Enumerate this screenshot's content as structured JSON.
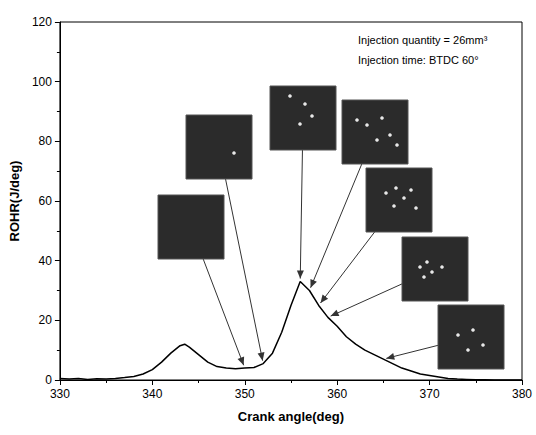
{
  "chart_data": {
    "type": "line",
    "xlabel": "Crank angle(deg)",
    "ylabel": "ROHR(J/deg)",
    "annotations": [
      "Injection quantity = 26mm³",
      "Injection time: BTDC 60°"
    ],
    "x": [
      330,
      331,
      332,
      333,
      334,
      335,
      336,
      337,
      338,
      339,
      340,
      341,
      342,
      343,
      343.5,
      344,
      345,
      346,
      347,
      348,
      349,
      350,
      351,
      352,
      353,
      354,
      355,
      356,
      357,
      358,
      359,
      360,
      361,
      362,
      363,
      364,
      365,
      366,
      367,
      368,
      369,
      370,
      371,
      372,
      373,
      374,
      375,
      376,
      377,
      378,
      379,
      380
    ],
    "values": [
      0.5,
      0.3,
      0.5,
      0.2,
      0.4,
      0.3,
      0.5,
      0.8,
      1.2,
      2,
      3.5,
      6,
      9,
      11.5,
      12,
      11,
      8.5,
      6,
      4.5,
      4,
      3.8,
      4,
      4.2,
      5.5,
      9,
      16,
      25,
      33,
      30,
      25,
      21,
      18,
      14.5,
      12,
      10,
      8.5,
      7,
      5.5,
      4,
      3,
      2,
      1.5,
      1,
      0.5,
      0.3,
      0.2,
      0.1,
      0.1,
      0,
      0,
      0,
      0
    ],
    "color": "#000000",
    "frames": [
      350,
      352,
      356,
      357,
      358,
      359,
      365
    ],
    "xlim": [
      330,
      380
    ],
    "ylim": [
      0,
      120
    ],
    "xticks": [
      330,
      340,
      350,
      360,
      370,
      380
    ],
    "yticks": [
      0,
      20,
      40,
      60,
      80,
      100,
      120
    ],
    "grid": false
  }
}
